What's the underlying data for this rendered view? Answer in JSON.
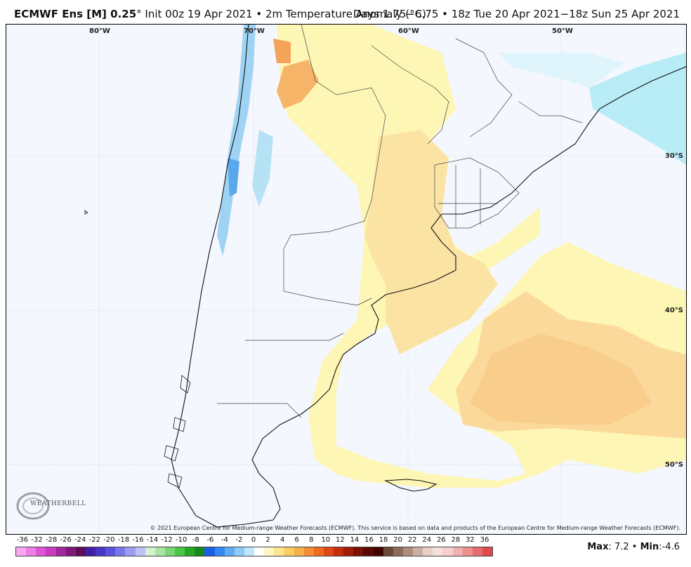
{
  "header": {
    "model": "ECMWF Ens [M] 0.25",
    "deg": "°",
    "init": " Init 00z 19 Apr 2021 • 2m Temperature Anomaly (°C)",
    "valid": "Days 1.75−6.75 • 18z Tue 20 Apr 2021−18z Sun 25 Apr 2021"
  },
  "map": {
    "lon_labels": [
      "80°W",
      "70°W",
      "60°W",
      "50°W"
    ],
    "lat_labels": [
      "30°S",
      "40°S",
      "50°S"
    ],
    "credit": "© 2021 European Centre for Medium-range Weather Forecasts (ECMWF). This service is based on data and products of the European Centre for Medium-range Weather Forecasts (ECMWF).",
    "logo": "WEATHERBELL"
  },
  "colorbar": {
    "ticks": [
      "-36",
      "-32",
      "-28",
      "-26",
      "-24",
      "-22",
      "-20",
      "-18",
      "-16",
      "-14",
      "-12",
      "-10",
      "-8",
      "-6",
      "-4",
      "-2",
      "0",
      "2",
      "4",
      "6",
      "8",
      "10",
      "12",
      "14",
      "16",
      "18",
      "20",
      "22",
      "24",
      "26",
      "28",
      "32",
      "36"
    ],
    "colors": [
      "#f7a8f0",
      "#ee7fe6",
      "#e055d8",
      "#c83cc0",
      "#a2279b",
      "#7f1779",
      "#5e0c5a",
      "#3f1fa7",
      "#4a35c6",
      "#5c52dc",
      "#7977e8",
      "#9a9cf1",
      "#bfc1f7",
      "#d4f1d1",
      "#a9e5a4",
      "#79d673",
      "#4cc447",
      "#26a925",
      "#168a1a",
      "#1b5ee4",
      "#3486f0",
      "#5fabf6",
      "#8fcbf8",
      "#bfe6fa",
      "#ffffff",
      "#fff6c2",
      "#fde58d",
      "#fbcd63",
      "#f8b04a",
      "#f48d34",
      "#ee6a22",
      "#e14815",
      "#c52d0d",
      "#a21d09",
      "#7c1005",
      "#5a0903",
      "#3e0501",
      "#6b4a3a",
      "#8d6b5b",
      "#ad8c7c",
      "#cbaea0",
      "#e6cfc4",
      "#f2e2da",
      "#f6d0cf",
      "#f2b1b0",
      "#ec8f8e",
      "#e66d6d",
      "#de4b4b"
    ]
  },
  "stats": {
    "max_label": "Max",
    "max_value": ": 7.2",
    "sep": " • ",
    "min_label": "Min",
    "min_value": ":-4.6"
  }
}
